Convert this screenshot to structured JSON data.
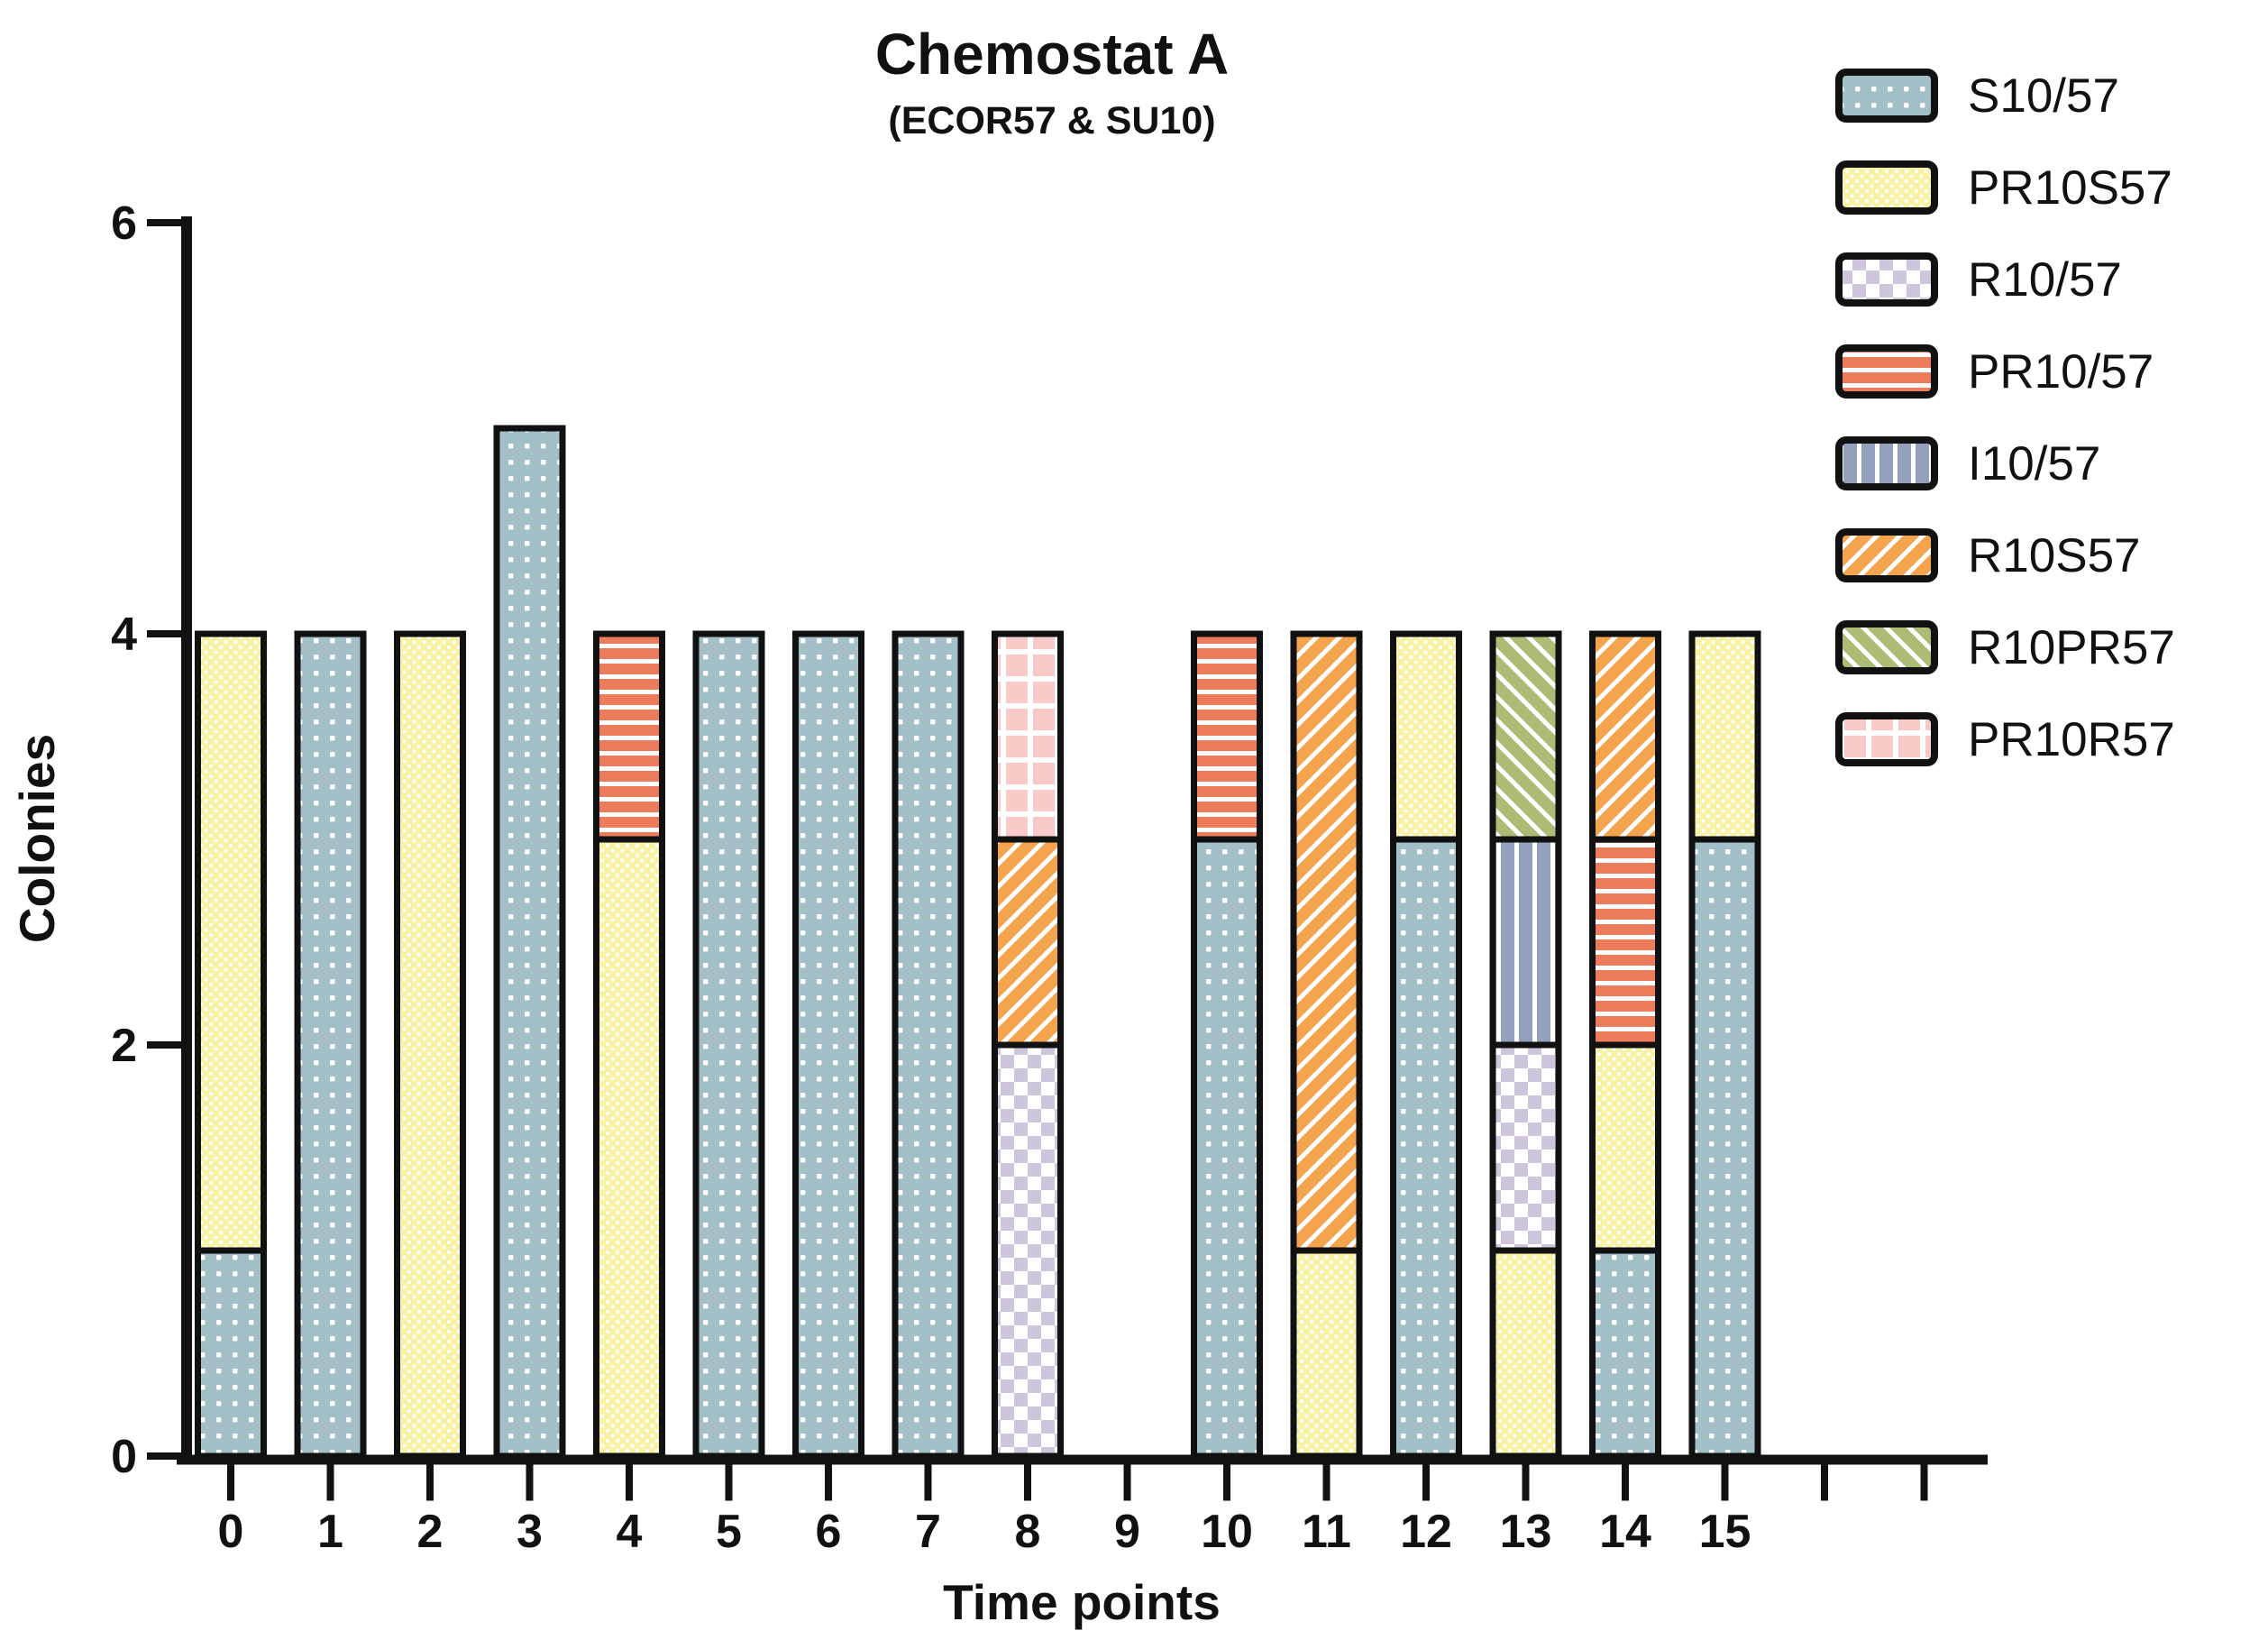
{
  "page": {
    "background": "#ffffff",
    "text_color": "#111111",
    "outline_color": "#111111"
  },
  "chart_data": {
    "type": "bar",
    "stacked": true,
    "title": "Chemostat A",
    "subtitle": "(ECOR57 & SU10)",
    "xlabel": "Time points",
    "ylabel": "Colonies",
    "ylim": [
      0,
      6
    ],
    "yticks": [
      "0",
      "2",
      "4",
      "6"
    ],
    "categories": [
      "0",
      "1",
      "2",
      "3",
      "4",
      "5",
      "6",
      "7",
      "8",
      "9",
      "10",
      "11",
      "12",
      "13",
      "14",
      "15"
    ],
    "extra_unlabeled_xticks": 2,
    "grid": false,
    "legend_position": "top-right",
    "bar_outline_color": "#111111",
    "series": [
      {
        "name": "S10/57",
        "color": "#a3bfc7",
        "pattern": "dots",
        "values": [
          1,
          4,
          0,
          5,
          0,
          4,
          4,
          4,
          0,
          0,
          3,
          0,
          3,
          0,
          1,
          3
        ]
      },
      {
        "name": "PR10S57",
        "color": "#f8f2a2",
        "pattern": "finedots",
        "values": [
          3,
          0,
          4,
          0,
          3,
          0,
          0,
          0,
          0,
          0,
          0,
          1,
          1,
          1,
          1,
          1
        ]
      },
      {
        "name": "R10/57",
        "color": "#cfc5dc",
        "pattern": "checker",
        "values": [
          0,
          0,
          0,
          0,
          0,
          0,
          0,
          0,
          2,
          0,
          0,
          0,
          0,
          1,
          0,
          0
        ]
      },
      {
        "name": "PR10/57",
        "color": "#ed7c5c",
        "pattern": "hstripes",
        "values": [
          0,
          0,
          0,
          0,
          1,
          0,
          0,
          0,
          0,
          0,
          1,
          0,
          0,
          0,
          1,
          0
        ]
      },
      {
        "name": "I10/57",
        "color": "#93a1bd",
        "pattern": "vstripes",
        "values": [
          0,
          0,
          0,
          0,
          0,
          0,
          0,
          0,
          0,
          0,
          0,
          0,
          0,
          1,
          0,
          0
        ]
      },
      {
        "name": "R10S57",
        "color": "#f4a44c",
        "pattern": "diagf",
        "values": [
          0,
          0,
          0,
          0,
          0,
          0,
          0,
          0,
          1,
          0,
          0,
          3,
          0,
          0,
          1,
          0
        ]
      },
      {
        "name": "R10PR57",
        "color": "#abbd75",
        "pattern": "diagb",
        "values": [
          0,
          0,
          0,
          0,
          0,
          0,
          0,
          0,
          0,
          0,
          0,
          0,
          0,
          1,
          0,
          0
        ]
      },
      {
        "name": "PR10R57",
        "color": "#f8caca",
        "pattern": "grid",
        "values": [
          0,
          0,
          0,
          0,
          0,
          0,
          0,
          0,
          1,
          0,
          0,
          0,
          0,
          0,
          0,
          0
        ]
      }
    ]
  }
}
